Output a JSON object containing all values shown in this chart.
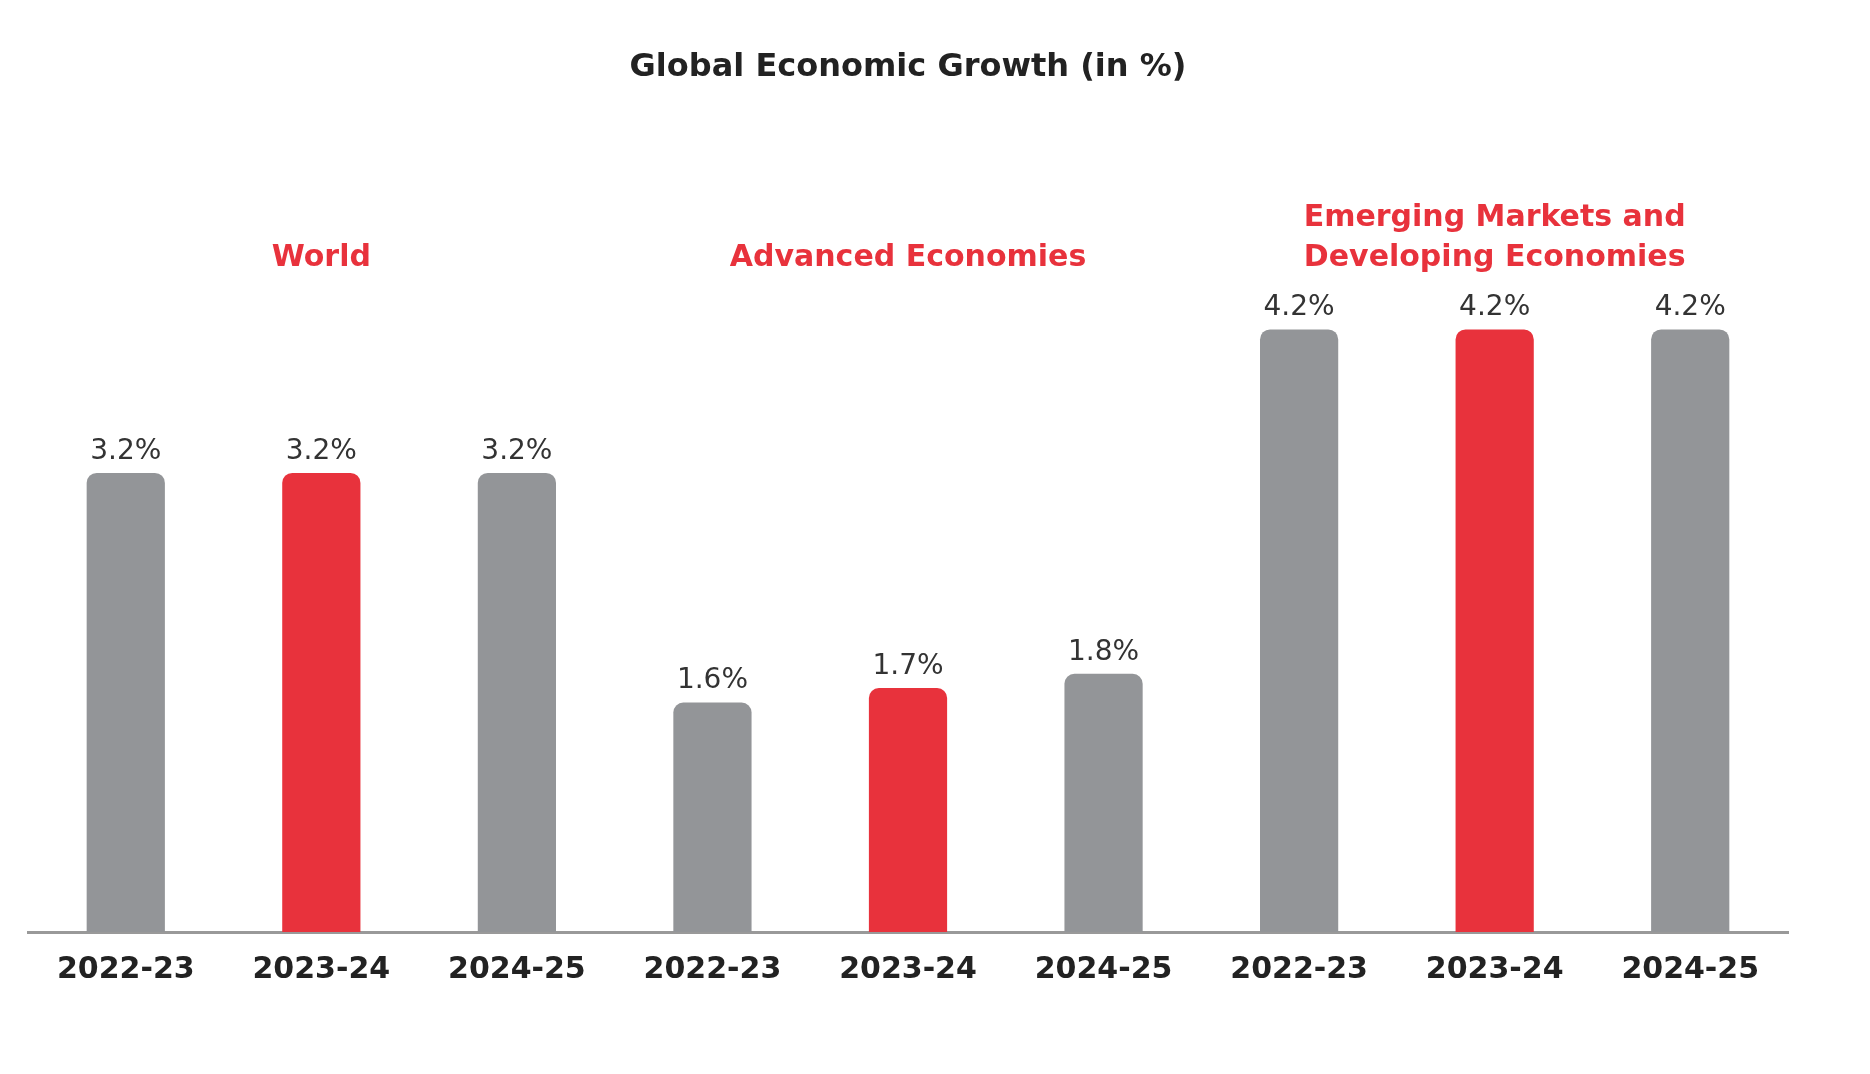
{
  "chart_data": {
    "type": "bar",
    "title": "Global Economic Growth (in %)",
    "categories": [
      "2022-23",
      "2023-24",
      "2024-25",
      "2022-23",
      "2023-24",
      "2024-25",
      "2022-23",
      "2023-24",
      "2024-25"
    ],
    "values": [
      3.2,
      3.2,
      3.2,
      1.6,
      1.7,
      1.8,
      4.2,
      4.2,
      4.2
    ],
    "colors": [
      "#939598",
      "#e8323c",
      "#939598",
      "#939598",
      "#e8323c",
      "#939598",
      "#939598",
      "#e8323c",
      "#939598"
    ],
    "value_labels": [
      "3.2%",
      "3.2%",
      "3.2%",
      "1.6%",
      "1.7%",
      "1.8%",
      "4.2%",
      "4.2%",
      "4.2%"
    ],
    "annotations": [
      "World",
      "Advanced Economies",
      "Emerging Markets and Developing Economies"
    ],
    "grid": false,
    "legend": false
  }
}
